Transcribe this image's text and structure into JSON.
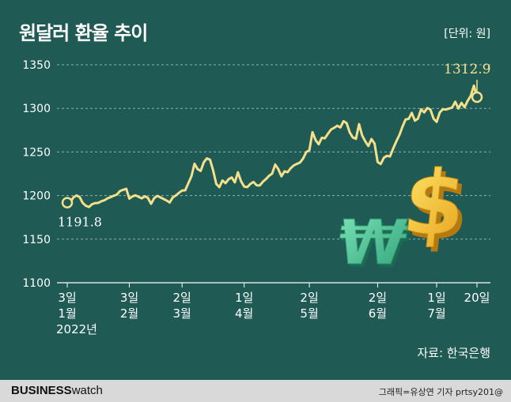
{
  "title": "원달러 환율 추이",
  "unit_label": "[단위: 원]",
  "source": "자료: 한국은행",
  "footer": {
    "brand_bold": "BUSINESS",
    "brand_light": "watch",
    "credit": "그래픽=유상연 기자 prtsy201@"
  },
  "colors": {
    "background": "#1f5a55",
    "line": "#f5e08a",
    "annotation": "#f5e08a",
    "gridline": "#8fb3ad",
    "won_icon": "#4fc79a",
    "dollar_icon": "#f2c33a"
  },
  "icons": [
    "won-sign-icon",
    "dollar-sign-icon"
  ],
  "chart_data": {
    "type": "line",
    "title": "원달러 환율 추이",
    "ylabel": "",
    "xlabel": "",
    "ylim": [
      1100,
      1350
    ],
    "yticks": [
      1100,
      1150,
      1200,
      1250,
      1300,
      1350
    ],
    "grid": true,
    "xtick_labels": [
      {
        "lines": [
          "3일",
          "1월",
          "2022년"
        ]
      },
      {
        "lines": [
          "3일",
          "2월"
        ]
      },
      {
        "lines": [
          "2일",
          "3월"
        ]
      },
      {
        "lines": [
          "1일",
          "4월"
        ]
      },
      {
        "lines": [
          "2일",
          "5월"
        ]
      },
      {
        "lines": [
          "2일",
          "6월"
        ]
      },
      {
        "lines": [
          "1일",
          "7월"
        ]
      },
      {
        "lines": [
          "20일"
        ]
      }
    ],
    "xtick_positions": [
      0,
      20,
      37,
      57,
      78,
      100,
      119,
      132
    ],
    "annotations": [
      {
        "label": "1191.8",
        "index": 0,
        "position": "below"
      },
      {
        "label": "1312.9",
        "index": 132,
        "position": "above"
      }
    ],
    "values": [
      1191.8,
      1192.4,
      1197.8,
      1200.1,
      1198.2,
      1191.5,
      1188.3,
      1186.9,
      1190.1,
      1191.3,
      1191.6,
      1193.5,
      1194.7,
      1196.8,
      1198.2,
      1199.8,
      1201.1,
      1205.2,
      1206.5,
      1207.8,
      1196.4,
      1199.0,
      1200.3,
      1198.5,
      1196.8,
      1199.2,
      1197.3,
      1190.6,
      1197.0,
      1199.6,
      1197.9,
      1196.1,
      1194.3,
      1192.0,
      1197.8,
      1200.1,
      1203.2,
      1205.8,
      1206.0,
      1213.9,
      1222.1,
      1236.5,
      1230.3,
      1228.3,
      1238.3,
      1242.7,
      1241.1,
      1229.0,
      1213.4,
      1209.6,
      1217.3,
      1214.2,
      1218.8,
      1220.7,
      1215.1,
      1226.6,
      1216.3,
      1210.2,
      1209.7,
      1213.3,
      1215.6,
      1211.8,
      1211.5,
      1215.7,
      1218.8,
      1222.6,
      1225.1,
      1235.6,
      1230.3,
      1222.1,
      1227.8,
      1226.8,
      1231.3,
      1234.7,
      1236.3,
      1237.9,
      1242.5,
      1249.9,
      1252.0,
      1272.7,
      1263.8,
      1258.8,
      1266.2,
      1265.7,
      1270.9,
      1275.8,
      1277.7,
      1280.1,
      1278.1,
      1285.3,
      1283.1,
      1272.5,
      1266.7,
      1265.0,
      1281.9,
      1269.0,
      1262.3,
      1256.8,
      1264.9,
      1259.6,
      1238.5,
      1236.1,
      1243.4,
      1245.6,
      1244.8,
      1253.9,
      1262.1,
      1269.4,
      1279.0,
      1287.2,
      1288.0,
      1294.8,
      1285.9,
      1288.2,
      1298.9,
      1295.4,
      1300.4,
      1298.7,
      1288.2,
      1284.4,
      1295.2,
      1299.0,
      1298.6,
      1299.8,
      1300.9,
      1307.6,
      1299.8,
      1306.3,
      1301.3,
      1308.6,
      1314.6,
      1326.1,
      1312.9
    ]
  }
}
